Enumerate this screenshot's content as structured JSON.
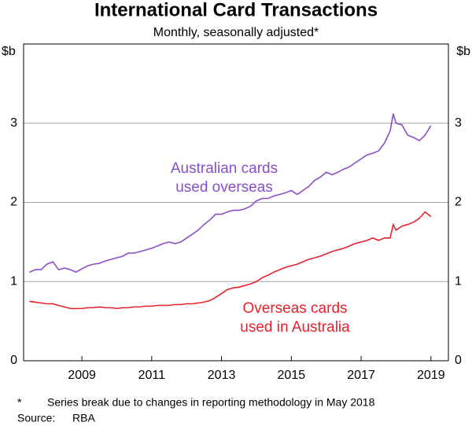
{
  "chart_data": {
    "type": "line",
    "title": "International Card Transactions",
    "subtitle": "Monthly, seasonally adjusted*",
    "y_unit": "$b",
    "x": [
      2008.0,
      2008.17,
      2008.33,
      2008.5,
      2008.67,
      2008.83,
      2009.0,
      2009.17,
      2009.33,
      2009.5,
      2009.67,
      2009.83,
      2010.0,
      2010.17,
      2010.33,
      2010.5,
      2010.67,
      2010.83,
      2011.0,
      2011.17,
      2011.33,
      2011.5,
      2011.67,
      2011.83,
      2012.0,
      2012.17,
      2012.33,
      2012.5,
      2012.67,
      2012.83,
      2013.0,
      2013.17,
      2013.33,
      2013.5,
      2013.67,
      2013.83,
      2014.0,
      2014.17,
      2014.33,
      2014.5,
      2014.67,
      2014.83,
      2015.0,
      2015.17,
      2015.33,
      2015.5,
      2015.67,
      2015.83,
      2016.0,
      2016.17,
      2016.33,
      2016.5,
      2016.67,
      2016.83,
      2017.0,
      2017.17,
      2017.33,
      2017.5,
      2017.67,
      2017.83,
      2018.0,
      2018.17,
      2018.33,
      2018.42,
      2018.5,
      2018.67,
      2018.83,
      2019.0,
      2019.17,
      2019.33,
      2019.5
    ],
    "series": [
      {
        "name": "Australian cards used overseas",
        "color": "#8a4fc7",
        "values": [
          1.12,
          1.15,
          1.15,
          1.22,
          1.25,
          1.15,
          1.17,
          1.15,
          1.12,
          1.16,
          1.2,
          1.22,
          1.23,
          1.26,
          1.28,
          1.3,
          1.32,
          1.36,
          1.36,
          1.38,
          1.4,
          1.42,
          1.45,
          1.48,
          1.5,
          1.48,
          1.5,
          1.55,
          1.6,
          1.65,
          1.72,
          1.78,
          1.85,
          1.85,
          1.88,
          1.9,
          1.9,
          1.92,
          1.95,
          2.02,
          2.05,
          2.05,
          2.08,
          2.1,
          2.12,
          2.15,
          2.1,
          2.15,
          2.2,
          2.28,
          2.32,
          2.38,
          2.35,
          2.38,
          2.42,
          2.45,
          2.5,
          2.55,
          2.6,
          2.62,
          2.65,
          2.75,
          2.9,
          3.12,
          3.0,
          2.98,
          2.85,
          2.82,
          2.78,
          2.85,
          2.97
        ]
      },
      {
        "name": "Overseas cards used in Australia",
        "color": "#e8202a",
        "values": [
          0.75,
          0.74,
          0.73,
          0.72,
          0.72,
          0.7,
          0.68,
          0.66,
          0.66,
          0.66,
          0.67,
          0.67,
          0.68,
          0.67,
          0.67,
          0.66,
          0.67,
          0.67,
          0.68,
          0.68,
          0.69,
          0.69,
          0.7,
          0.7,
          0.7,
          0.71,
          0.71,
          0.72,
          0.72,
          0.73,
          0.74,
          0.76,
          0.8,
          0.85,
          0.9,
          0.92,
          0.93,
          0.95,
          0.97,
          1.0,
          1.05,
          1.08,
          1.12,
          1.15,
          1.18,
          1.2,
          1.22,
          1.25,
          1.28,
          1.3,
          1.32,
          1.35,
          1.38,
          1.4,
          1.42,
          1.45,
          1.48,
          1.5,
          1.52,
          1.55,
          1.52,
          1.55,
          1.55,
          1.72,
          1.65,
          1.7,
          1.72,
          1.75,
          1.8,
          1.88,
          1.82
        ]
      }
    ],
    "xlim": [
      2007.83,
      2020.0
    ],
    "xticks": [
      {
        "value": 2009.5,
        "label": "2009"
      },
      {
        "value": 2011.5,
        "label": "2011"
      },
      {
        "value": 2013.5,
        "label": "2013"
      },
      {
        "value": 2015.5,
        "label": "2015"
      },
      {
        "value": 2017.5,
        "label": "2017"
      },
      {
        "value": 2019.5,
        "label": "2019"
      }
    ],
    "ylim": [
      0,
      4
    ],
    "yticks": [
      0,
      1,
      2,
      3
    ],
    "grid": true,
    "note": {
      "marker": "*",
      "text": "Series break due to changes in reporting methodology in May 2018"
    },
    "source": {
      "label": "Source:",
      "text": "RBA"
    }
  }
}
